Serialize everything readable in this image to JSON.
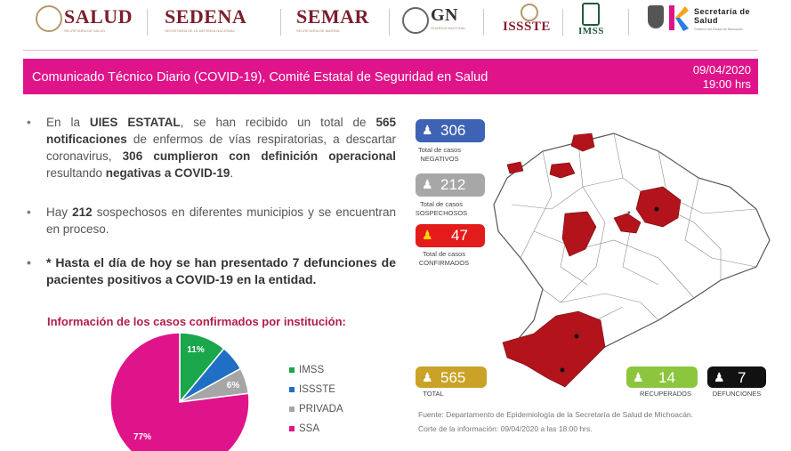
{
  "header": {
    "logos": {
      "salud": {
        "label": "SALUD",
        "sub": "SECRETARÍA DE SALUD"
      },
      "sedena": {
        "label": "SEDENA",
        "sub": "SECRETARÍA DE LA DEFENSA NACIONAL"
      },
      "semar": {
        "label": "SEMAR",
        "sub": "SECRETARÍA DE MARINA"
      },
      "gn": {
        "label": "GN",
        "sub": "GUARDIA NACIONAL"
      },
      "issste": {
        "label": "ISSSTE"
      },
      "imss": {
        "label": "IMSS"
      },
      "secretaria": {
        "label": "Secretaría de Salud",
        "sub": "Gobierno del Estado de Michoacán"
      }
    }
  },
  "banner": {
    "title": "Comunicado Técnico Diario (COVID-19), Comité Estatal de Seguridad en Salud",
    "date": "09/04/2020",
    "time": "19:00 hrs",
    "color": "#e0148a"
  },
  "bullets": {
    "b1": {
      "t1": "En la ",
      "b1": "UIES ESTATAL",
      "t2": ", se han recibido un total de ",
      "b2": "565 notificaciones",
      "t3": " de enfermos de vías respiratorias, a descartar coronavirus, ",
      "b3": "306 cumplieron con definición operacional",
      "t4": " resultando ",
      "b4": "negativas a COVID-19",
      "t5": "."
    },
    "b2": {
      "t1": "Hay ",
      "b1": "212",
      "t2": " sospechosos en diferentes municipios y se encuentran en proceso."
    },
    "b3": {
      "text": "* Hasta el día de hoy se han presentado 7 defunciones de pacientes positivos a COVID-19 en la entidad."
    }
  },
  "pie": {
    "title": "Información de los casos confirmados por institución:",
    "slices": [
      {
        "name": "IMSS",
        "percent": 11,
        "label": "11%",
        "color": "#1aa64b"
      },
      {
        "name": "ISSSTE",
        "percent": 6,
        "label": "",
        "color": "#1f6fc4"
      },
      {
        "name": "PRIVADA",
        "percent": 6,
        "label": "6%",
        "color": "#a6a6a6"
      },
      {
        "name": "SSA",
        "percent": 77,
        "label": "77%",
        "color": "#e0148a"
      }
    ],
    "legend": [
      "IMSS",
      "ISSSTE",
      "PRIVADA",
      "SSA"
    ]
  },
  "stats": {
    "negativos": {
      "value": "306",
      "caption": "Total de casos NEGATIVOS",
      "color": "#3e63b5"
    },
    "sospechosos": {
      "value": "212",
      "caption": "Total de casos SOSPECHOSOS",
      "color": "#a7a7a7"
    },
    "confirmados": {
      "value": "47",
      "caption": "Total de casos CONFIRMADOS",
      "color": "#e31b1b"
    },
    "total": {
      "value": "565",
      "caption": "TOTAL",
      "color": "#c9a227"
    },
    "recuperados": {
      "value": "14",
      "caption": "RECUPERADOS",
      "color": "#8cc63f"
    },
    "defunciones": {
      "value": "7",
      "caption": "DEFUNCIONES",
      "color": "#111111"
    }
  },
  "map": {
    "highlight_color": "#b3131b",
    "icon": "michoacan-map"
  },
  "footer": {
    "source": "Fuente: Departamento de Epidemiología de la Secretaría de Salud de Michoacán.",
    "cutoff": "Corte de la información: 09/04/2020 a las 18:00 hrs."
  }
}
